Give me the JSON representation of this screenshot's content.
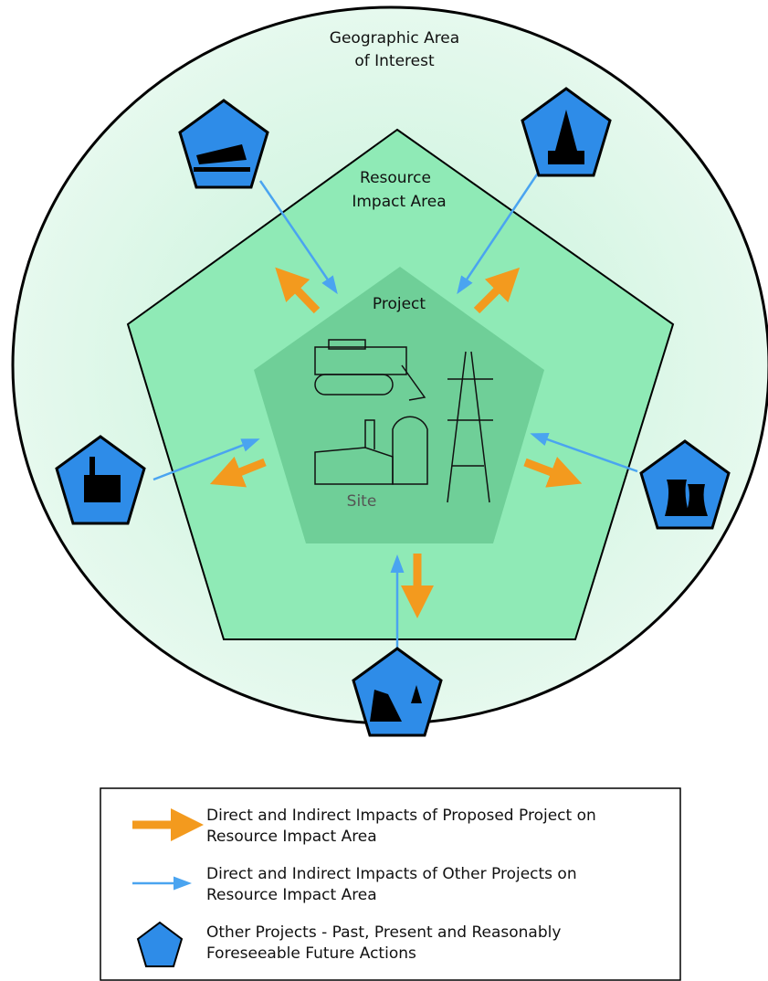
{
  "areas": {
    "geographic": [
      "Geographic Area",
      "of Interest"
    ],
    "resource": [
      "Resource",
      "Impact Area"
    ],
    "project": "Project",
    "site": "Site"
  },
  "legend": [
    {
      "lines": [
        "Direct and Indirect Impacts of Proposed Project on",
        "Resource Impact Area"
      ]
    },
    {
      "lines": [
        "Direct and Indirect Impacts of Other Projects on",
        "Resource Impact Area"
      ]
    },
    {
      "lines": [
        "Other Projects - Past, Present and Reasonably",
        "Foreseeable Future Actions"
      ]
    }
  ]
}
